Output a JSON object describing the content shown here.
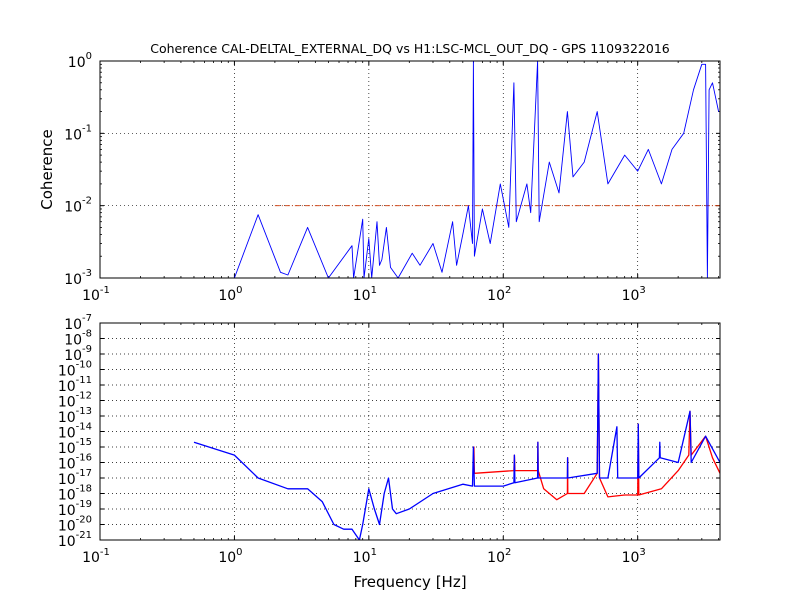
{
  "figure": {
    "title": "Coherence CAL-DELTAL_EXTERNAL_DQ vs H1:LSC-MCL_OUT_DQ - GPS 1109322016",
    "xlabel": "Frequency [Hz]"
  },
  "chart_data": [
    {
      "type": "line",
      "title": "Coherence CAL-DELTAL_EXTERNAL_DQ vs H1:LSC-MCL_OUT_DQ - GPS 1109322016",
      "xlabel": "",
      "ylabel": "Coherence",
      "xscale": "log",
      "yscale": "log",
      "xlim": [
        0.1,
        4096
      ],
      "ylim": [
        0.001,
        1
      ],
      "grid": true,
      "x_ticks": [
        "10^-1",
        "10^0",
        "10^1",
        "10^2",
        "10^3"
      ],
      "y_ticks": [
        "10^-3",
        "10^-2",
        "10^-1",
        "10^0"
      ],
      "threshold_line": {
        "y": 0.01,
        "color": "#cc3300",
        "style": "dash-dot"
      },
      "series": [
        {
          "color": "#0000ff",
          "points": [
            [
              1.0,
              0.001
            ],
            [
              1.5,
              0.0075
            ],
            [
              2.2,
              0.0012
            ],
            [
              2.5,
              0.0011
            ],
            [
              3.5,
              0.005
            ],
            [
              5.0,
              0.001
            ],
            [
              7.5,
              0.0028
            ],
            [
              7.7,
              0.001
            ],
            [
              9.0,
              0.0065
            ],
            [
              9.2,
              0.001
            ],
            [
              10.0,
              0.0035
            ],
            [
              10.5,
              0.001
            ],
            [
              11.5,
              0.006
            ],
            [
              12.0,
              0.0015
            ],
            [
              12.5,
              0.0018
            ],
            [
              13.5,
              0.005
            ],
            [
              14.5,
              0.0014
            ],
            [
              16.5,
              0.001
            ],
            [
              21.0,
              0.0022
            ],
            [
              24.0,
              0.0015
            ],
            [
              30.0,
              0.003
            ],
            [
              35.0,
              0.0012
            ],
            [
              42.0,
              0.006
            ],
            [
              45.0,
              0.0015
            ],
            [
              50.0,
              0.004
            ],
            [
              55.0,
              0.01
            ],
            [
              59.0,
              0.003
            ],
            [
              60.0,
              1.0
            ],
            [
              61.0,
              0.002
            ],
            [
              70.0,
              0.009
            ],
            [
              80.0,
              0.003
            ],
            [
              95.0,
              0.02
            ],
            [
              110.0,
              0.005
            ],
            [
              120.0,
              0.5
            ],
            [
              125.0,
              0.006
            ],
            [
              150.0,
              0.02
            ],
            [
              160.0,
              0.008
            ],
            [
              180.0,
              1.0
            ],
            [
              185.0,
              0.006
            ],
            [
              220.0,
              0.04
            ],
            [
              260.0,
              0.015
            ],
            [
              300.0,
              0.2
            ],
            [
              330.0,
              0.025
            ],
            [
              400.0,
              0.04
            ],
            [
              500.0,
              0.2
            ],
            [
              600.0,
              0.02
            ],
            [
              800.0,
              0.05
            ],
            [
              1000.0,
              0.03
            ],
            [
              1200.0,
              0.06
            ],
            [
              1500.0,
              0.02
            ],
            [
              1800.0,
              0.06
            ],
            [
              2200.0,
              0.1
            ],
            [
              2600.0,
              0.4
            ],
            [
              3000.0,
              0.9
            ],
            [
              3200.0,
              0.9
            ],
            [
              3300.0,
              0.001
            ],
            [
              3400.0,
              0.4
            ],
            [
              3600.0,
              0.5
            ],
            [
              4000.0,
              0.2
            ]
          ]
        }
      ]
    },
    {
      "type": "line",
      "title": "",
      "xlabel": "Frequency [Hz]",
      "ylabel": "",
      "xscale": "log",
      "yscale": "log",
      "xlim": [
        0.1,
        4096
      ],
      "ylim": [
        1e-21,
        1e-07
      ],
      "grid": true,
      "x_ticks": [
        "10^-1",
        "10^0",
        "10^1",
        "10^2",
        "10^3"
      ],
      "y_ticks": [
        "10^-21",
        "10^-20",
        "10^-19",
        "10^-18",
        "10^-17",
        "10^-16",
        "10^-15",
        "10^-14",
        "10^-13",
        "10^-12",
        "10^-11",
        "10^-10",
        "10^-9",
        "10^-8",
        "10^-7"
      ],
      "series": [
        {
          "color": "#ff0000",
          "points": [
            [
              60.0,
              2e-17
            ],
            [
              60.5,
              1e-15
            ],
            [
              61.0,
              2e-17
            ],
            [
              120.0,
              3e-17
            ],
            [
              121.0,
              3e-16
            ],
            [
              122.0,
              3e-17
            ],
            [
              180.0,
              3e-17
            ],
            [
              181.0,
              2e-15
            ],
            [
              182.0,
              3e-17
            ],
            [
              200.0,
              2e-18
            ],
            [
              250.0,
              4e-19
            ],
            [
              300.0,
              1e-18
            ],
            [
              301.0,
              2e-16
            ],
            [
              302.0,
              1e-18
            ],
            [
              400.0,
              1e-18
            ],
            [
              500.0,
              2e-17
            ],
            [
              510.0,
              1e-09
            ],
            [
              520.0,
              1e-17
            ],
            [
              600.0,
              6e-19
            ],
            [
              800.0,
              8e-19
            ],
            [
              1000.0,
              8e-19
            ],
            [
              1010.0,
              3e-14
            ],
            [
              1020.0,
              8e-19
            ],
            [
              1500.0,
              2e-18
            ],
            [
              2000.0,
              3e-17
            ],
            [
              2400.0,
              3e-16
            ],
            [
              2450.0,
              2e-13
            ],
            [
              2500.0,
              3e-16
            ],
            [
              3200.0,
              5e-15
            ],
            [
              3600.0,
              2e-16
            ],
            [
              4096.0,
              2e-17
            ]
          ]
        },
        {
          "color": "#0000ff",
          "points": [
            [
              0.5,
              2e-15
            ],
            [
              1.0,
              3e-16
            ],
            [
              1.5,
              1e-17
            ],
            [
              2.5,
              2e-18
            ],
            [
              3.5,
              2e-18
            ],
            [
              4.5,
              3e-19
            ],
            [
              5.5,
              1e-20
            ],
            [
              6.5,
              5e-21
            ],
            [
              7.5,
              5e-21
            ],
            [
              8.5,
              1e-21
            ],
            [
              9.0,
              1e-20
            ],
            [
              10.0,
              2e-18
            ],
            [
              11.0,
              1e-19
            ],
            [
              12.0,
              1e-20
            ],
            [
              13.0,
              1e-18
            ],
            [
              14.0,
              1e-17
            ],
            [
              15.0,
              1e-19
            ],
            [
              16.0,
              5e-20
            ],
            [
              20.0,
              1e-19
            ],
            [
              30.0,
              1e-18
            ],
            [
              50.0,
              4e-18
            ],
            [
              59.0,
              3e-18
            ],
            [
              60.0,
              1e-15
            ],
            [
              61.0,
              3e-18
            ],
            [
              80.0,
              3e-18
            ],
            [
              100.0,
              3e-18
            ],
            [
              120.0,
              5e-18
            ],
            [
              121.0,
              3e-16
            ],
            [
              122.0,
              5e-18
            ],
            [
              180.0,
              1e-17
            ],
            [
              181.0,
              2e-15
            ],
            [
              182.0,
              1e-17
            ],
            [
              300.0,
              1e-17
            ],
            [
              301.0,
              2e-16
            ],
            [
              302.0,
              1e-17
            ],
            [
              500.0,
              2e-17
            ],
            [
              510.0,
              1e-09
            ],
            [
              520.0,
              1e-17
            ],
            [
              600.0,
              1e-17
            ],
            [
              700.0,
              2e-14
            ],
            [
              710.0,
              1e-17
            ],
            [
              800.0,
              1e-17
            ],
            [
              1000.0,
              1e-17
            ],
            [
              1010.0,
              3e-14
            ],
            [
              1020.0,
              1e-17
            ],
            [
              1450.0,
              2e-16
            ],
            [
              1460.0,
              2e-15
            ],
            [
              1470.0,
              2e-16
            ],
            [
              2000.0,
              1e-16
            ],
            [
              2450.0,
              2e-13
            ],
            [
              2500.0,
              1e-16
            ],
            [
              3200.0,
              5e-15
            ],
            [
              4096.0,
              1e-16
            ]
          ]
        }
      ]
    }
  ]
}
